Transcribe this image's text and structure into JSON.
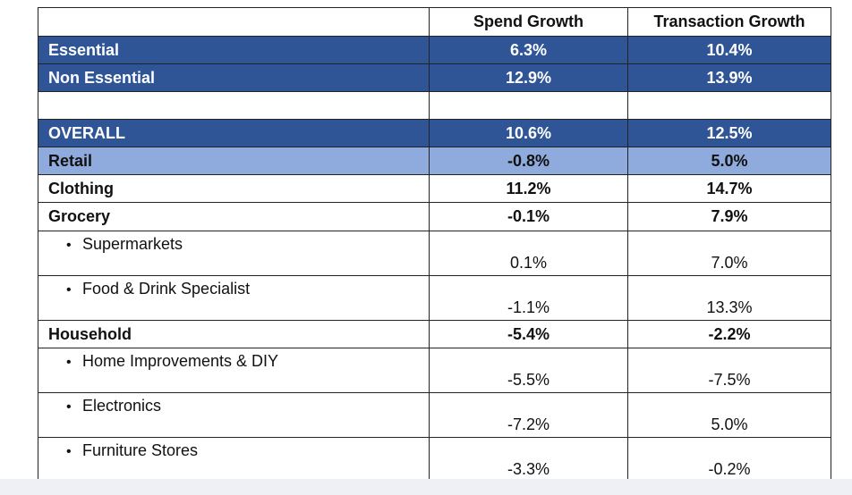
{
  "table": {
    "headers": [
      "",
      "Spend Growth",
      "Transaction Growth"
    ],
    "rows": [
      {
        "label": "Essential",
        "spend": "6.3%",
        "transactions": "10.4%"
      },
      {
        "label": "Non Essential",
        "spend": "12.9%",
        "transactions": "13.9%"
      },
      {
        "label": "",
        "spend": "",
        "transactions": ""
      },
      {
        "label": "OVERALL",
        "spend": "10.6%",
        "transactions": "12.5%"
      },
      {
        "label": "Retail",
        "spend": "-0.8%",
        "transactions": "5.0%"
      },
      {
        "label": "Clothing",
        "spend": "11.2%",
        "transactions": "14.7%"
      },
      {
        "label": "Grocery",
        "spend": "-0.1%",
        "transactions": "7.9%"
      },
      {
        "label": "Supermarkets",
        "spend": "0.1%",
        "transactions": "7.0%"
      },
      {
        "label": "Food & Drink Specialist",
        "spend": "-1.1%",
        "transactions": "13.3%"
      },
      {
        "label": "Household",
        "spend": "-5.4%",
        "transactions": "-2.2%"
      },
      {
        "label": "Home Improvements & DIY",
        "spend": "-5.5%",
        "transactions": "-7.5%"
      },
      {
        "label": "Electronics",
        "spend": "-7.2%",
        "transactions": "5.0%"
      },
      {
        "label": "Furniture Stores",
        "spend": "-3.3%",
        "transactions": "-0.2%"
      }
    ],
    "bullet_glyph": "•"
  },
  "colors": {
    "dark_row": "#2f5597",
    "light_row": "#8faadc",
    "border": "#222222"
  }
}
